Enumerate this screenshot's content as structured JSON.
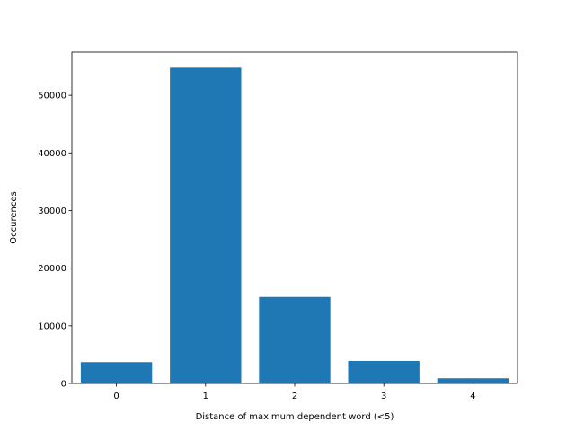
{
  "chart_data": {
    "type": "bar",
    "categories": [
      "0",
      "1",
      "2",
      "3",
      "4"
    ],
    "x": [
      0,
      1,
      2,
      3,
      4
    ],
    "values": [
      3700,
      54800,
      15000,
      3900,
      900
    ],
    "xlabel": "Distance of maximum dependent word (<5)",
    "ylabel": "Occurences",
    "xlim": [
      -0.5,
      4.5
    ],
    "ylim": [
      0,
      57500
    ],
    "yticks": [
      0,
      10000,
      20000,
      30000,
      40000,
      50000
    ],
    "ytick_labels": [
      "0",
      "10000",
      "20000",
      "30000",
      "40000",
      "50000"
    ],
    "bar_color": "#1f77b4",
    "grid": false,
    "legend": "none"
  }
}
